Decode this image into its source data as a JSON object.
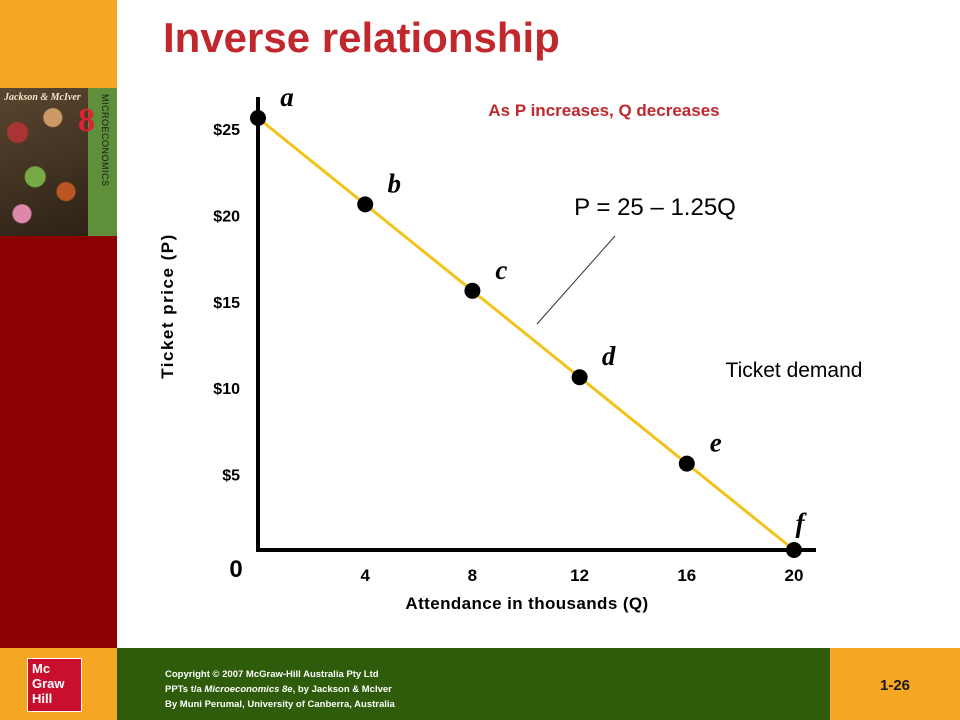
{
  "slide": {
    "title": "Inverse relationship",
    "page_number": "1-26"
  },
  "book_cover": {
    "title_text": "Jackson & McIver",
    "edition": "8",
    "subject": "MICROECONOMICS"
  },
  "footer": {
    "logo_lines": [
      "Mc",
      "Graw",
      "Hill"
    ],
    "copyright_parts": {
      "line1": "Copyright © 2007 McGraw-Hill Australia Pty Ltd",
      "line2_prefix": "PPTs t/a ",
      "line2_italic": "Microeconomics 8e",
      "line2_suffix": ", by Jackson & McIver",
      "line3": "By Muni Perumal, University of Canberra, Australia"
    }
  },
  "chart_data": {
    "type": "line",
    "xlabel": "Attendance in thousands (Q)",
    "ylabel": "Ticket price (P)",
    "origin_label": "0",
    "x_ticks": [
      4,
      8,
      12,
      16,
      20
    ],
    "y_ticks": [
      "$5",
      "$10",
      "$15",
      "$20",
      "$25"
    ],
    "y_tick_values": [
      5,
      10,
      15,
      20,
      25
    ],
    "xlim": [
      0,
      20.5
    ],
    "ylim": [
      0,
      25
    ],
    "series": [
      {
        "name": "Ticket demand",
        "color": "#f2c31a",
        "points": [
          {
            "label": "a",
            "x": 0,
            "y": 25
          },
          {
            "label": "b",
            "x": 4,
            "y": 20
          },
          {
            "label": "c",
            "x": 8,
            "y": 15
          },
          {
            "label": "d",
            "x": 12,
            "y": 10
          },
          {
            "label": "e",
            "x": 16,
            "y": 5
          },
          {
            "label": "f",
            "x": 20,
            "y": 0
          }
        ]
      }
    ],
    "annotations": {
      "equation": "P = 25 – 1.25Q",
      "headline": "As P increases, Q decreases",
      "headline_color": "#c0282d"
    }
  }
}
